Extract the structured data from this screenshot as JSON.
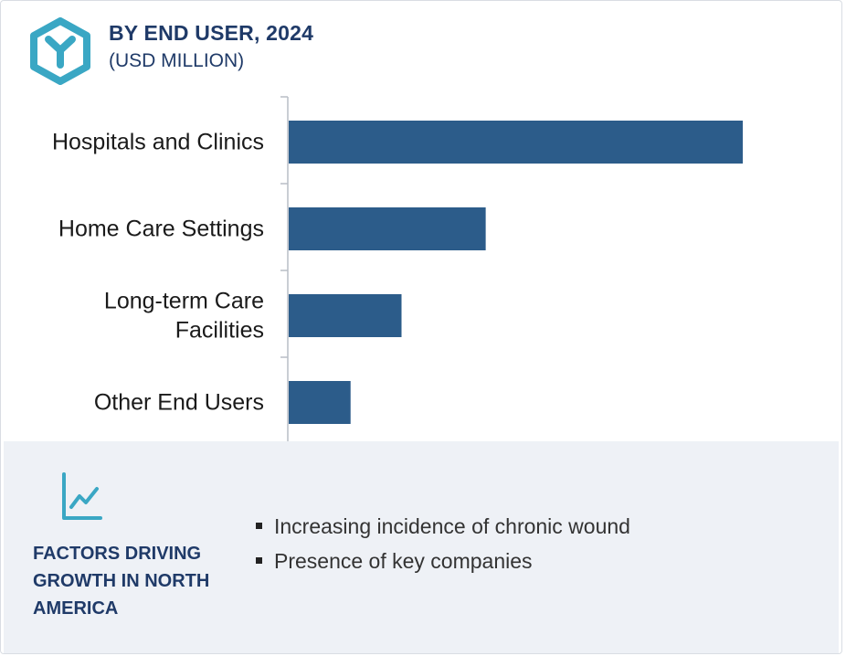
{
  "header": {
    "title": "BY END USER, 2024",
    "subtitle": "(USD MILLION)"
  },
  "chart_data": {
    "type": "bar",
    "orientation": "horizontal",
    "categories": [
      "Hospitals and Clinics",
      "Home Care Settings",
      "Long-term Care Facilities",
      "Other End Users"
    ],
    "category_lines": [
      [
        "Hospitals and Clinics"
      ],
      [
        "Home Care Settings"
      ],
      [
        "Long-term Care",
        "Facilities"
      ],
      [
        "Other End Users"
      ]
    ],
    "values": [
      100,
      43.5,
      25,
      13.8
    ],
    "xlim": [
      0,
      100
    ],
    "bar_color": "#2c5c8a",
    "grid": false,
    "value_axis_visible": false
  },
  "factors": {
    "title": "FACTORS DRIVING GROWTH IN NORTH AMERICA",
    "items": [
      "Increasing incidence of chronic wound",
      "Presence of key companies"
    ]
  },
  "colors": {
    "title": "#1f3a68",
    "accent": "#3aa7c4",
    "bar": "#2c5c8a",
    "panel_bg": "#eef1f6"
  },
  "icons": {
    "logo": "hexagon-y-logo-icon",
    "trend": "line-chart-trend-icon"
  }
}
